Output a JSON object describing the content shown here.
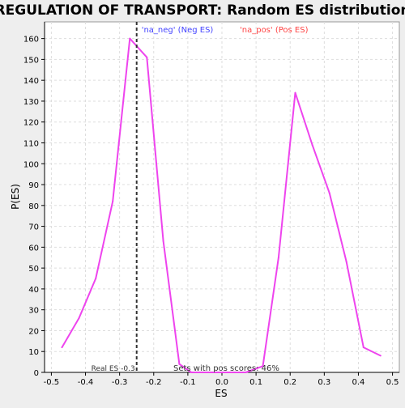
{
  "chart_data": {
    "type": "line",
    "title": "REGULATION OF TRANSPORT: Random ES distribution",
    "xlabel": "ES",
    "ylabel": "P(ES)",
    "xlim": [
      -0.52,
      0.52
    ],
    "ylim": [
      0,
      168
    ],
    "x_ticks": [
      -0.5,
      -0.4,
      -0.3,
      -0.2,
      -0.1,
      0.0,
      0.1,
      0.2,
      0.3,
      0.4,
      0.5
    ],
    "x_tick_labels": [
      "-0.5",
      "-0.4",
      "-0.3",
      "-0.2",
      "-0.1",
      "0.0",
      "0.1",
      "0.2",
      "0.3",
      "0.4",
      "0.5"
    ],
    "y_ticks": [
      0,
      10,
      20,
      30,
      40,
      50,
      60,
      70,
      80,
      90,
      100,
      110,
      120,
      130,
      140,
      150,
      160
    ],
    "grid": true,
    "series": [
      {
        "color": "#ee44ee",
        "x": [
          -0.469,
          -0.419,
          -0.37,
          -0.32,
          -0.27,
          -0.22,
          -0.172,
          -0.125,
          -0.09,
          0.0,
          0.07,
          0.12,
          0.166,
          0.215,
          0.265,
          0.315,
          0.365,
          0.415,
          0.465
        ],
        "y": [
          12,
          26,
          45,
          82,
          160,
          151,
          63,
          4,
          0,
          0,
          0,
          3,
          55,
          134,
          109,
          86,
          53,
          12,
          8
        ]
      }
    ],
    "real_es": {
      "x": -0.25,
      "label": "Real ES -0.3"
    },
    "legend": [
      {
        "label": "'na_neg' (Neg ES)",
        "color": "#4444ff",
        "position": "top-left"
      },
      {
        "label": "'na_pos' (Pos ES)",
        "color": "#ff4444",
        "position": "top-right"
      }
    ],
    "annotation": "Sets with pos scores: 46%"
  }
}
